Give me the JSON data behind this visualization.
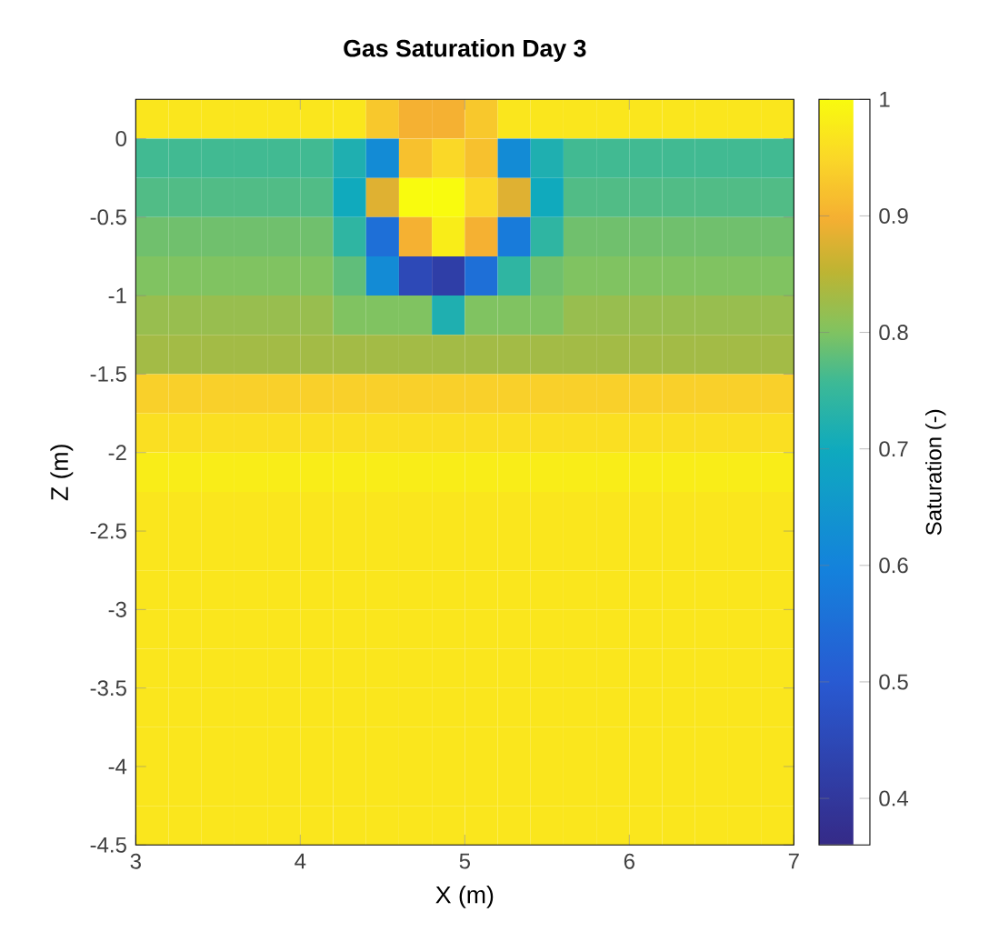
{
  "chart_data": {
    "type": "heatmap",
    "title": "Gas Saturation Day 3",
    "xlabel": "X (m)",
    "ylabel": "Z (m)",
    "clabel": "Saturation (-)",
    "xlim": [
      3,
      7
    ],
    "ylim": [
      -4.5,
      0.25
    ],
    "xticks": [
      3,
      4,
      5,
      6,
      7
    ],
    "yticks": [
      0,
      -0.5,
      -1,
      -1.5,
      -2,
      -2.5,
      -3,
      -3.5,
      -4,
      -4.5
    ],
    "clim": [
      0.36,
      1
    ],
    "cticks": [
      0.4,
      0.5,
      0.6,
      0.7,
      0.8,
      0.9,
      1
    ],
    "x": [
      3.1,
      3.3,
      3.5,
      3.7,
      3.9,
      4.1,
      4.3,
      4.5,
      4.7,
      4.9,
      5.1,
      5.3,
      5.5,
      5.7,
      5.9,
      6.1,
      6.3,
      6.5,
      6.7,
      6.9
    ],
    "y": [
      0.125,
      -0.125,
      -0.375,
      -0.625,
      -0.875,
      -1.125,
      -1.375,
      -1.625,
      -1.875,
      -2.125,
      -2.375,
      -2.625,
      -2.875,
      -3.125,
      -3.375,
      -3.625,
      -3.875,
      -4.125,
      -4.375
    ],
    "cells": [
      [
        0.97,
        0.97,
        0.97,
        0.97,
        0.97,
        0.97,
        0.97,
        0.93,
        0.9,
        0.9,
        0.93,
        0.97,
        0.97,
        0.97,
        0.97,
        0.97,
        0.97,
        0.97,
        0.97,
        0.97
      ],
      [
        0.76,
        0.76,
        0.76,
        0.76,
        0.76,
        0.76,
        0.72,
        0.62,
        0.92,
        0.95,
        0.92,
        0.62,
        0.72,
        0.76,
        0.76,
        0.76,
        0.76,
        0.76,
        0.76,
        0.76
      ],
      [
        0.77,
        0.77,
        0.77,
        0.77,
        0.77,
        0.77,
        0.7,
        0.88,
        1,
        1,
        0.95,
        0.88,
        0.7,
        0.77,
        0.77,
        0.77,
        0.77,
        0.77,
        0.77,
        0.77
      ],
      [
        0.79,
        0.79,
        0.79,
        0.79,
        0.79,
        0.79,
        0.74,
        0.55,
        0.9,
        0.98,
        0.9,
        0.58,
        0.74,
        0.79,
        0.79,
        0.79,
        0.79,
        0.79,
        0.79,
        0.79
      ],
      [
        0.8,
        0.8,
        0.8,
        0.8,
        0.8,
        0.8,
        0.78,
        0.62,
        0.45,
        0.42,
        0.55,
        0.74,
        0.79,
        0.8,
        0.8,
        0.8,
        0.8,
        0.8,
        0.8,
        0.8
      ],
      [
        0.82,
        0.82,
        0.82,
        0.82,
        0.82,
        0.82,
        0.8,
        0.8,
        0.8,
        0.72,
        0.8,
        0.8,
        0.8,
        0.82,
        0.82,
        0.82,
        0.82,
        0.82,
        0.82,
        0.82
      ],
      [
        0.83,
        0.83,
        0.83,
        0.83,
        0.83,
        0.83,
        0.83,
        0.83,
        0.83,
        0.83,
        0.83,
        0.83,
        0.83,
        0.83,
        0.83,
        0.83,
        0.83,
        0.83,
        0.83,
        0.83
      ],
      [
        0.94,
        0.94,
        0.94,
        0.94,
        0.94,
        0.94,
        0.94,
        0.94,
        0.94,
        0.94,
        0.94,
        0.94,
        0.94,
        0.94,
        0.94,
        0.94,
        0.94,
        0.94,
        0.94,
        0.94
      ],
      [
        0.96,
        0.96,
        0.96,
        0.96,
        0.96,
        0.96,
        0.96,
        0.96,
        0.96,
        0.96,
        0.96,
        0.96,
        0.96,
        0.96,
        0.96,
        0.96,
        0.96,
        0.96,
        0.96,
        0.96
      ],
      [
        0.98,
        0.98,
        0.98,
        0.98,
        0.98,
        0.98,
        0.98,
        0.98,
        0.98,
        0.98,
        0.98,
        0.98,
        0.98,
        0.98,
        0.98,
        0.98,
        0.98,
        0.98,
        0.98,
        0.98
      ],
      [
        0.97,
        0.97,
        0.97,
        0.97,
        0.97,
        0.97,
        0.97,
        0.97,
        0.97,
        0.97,
        0.97,
        0.97,
        0.97,
        0.97,
        0.97,
        0.97,
        0.97,
        0.97,
        0.97,
        0.97
      ],
      [
        0.97,
        0.97,
        0.97,
        0.97,
        0.97,
        0.97,
        0.97,
        0.97,
        0.97,
        0.97,
        0.97,
        0.97,
        0.97,
        0.97,
        0.97,
        0.97,
        0.97,
        0.97,
        0.97,
        0.97
      ],
      [
        0.97,
        0.97,
        0.97,
        0.97,
        0.97,
        0.97,
        0.97,
        0.97,
        0.97,
        0.97,
        0.97,
        0.97,
        0.97,
        0.97,
        0.97,
        0.97,
        0.97,
        0.97,
        0.97,
        0.97
      ],
      [
        0.97,
        0.97,
        0.97,
        0.97,
        0.97,
        0.97,
        0.97,
        0.97,
        0.97,
        0.97,
        0.97,
        0.97,
        0.97,
        0.97,
        0.97,
        0.97,
        0.97,
        0.97,
        0.97,
        0.97
      ],
      [
        0.97,
        0.97,
        0.97,
        0.97,
        0.97,
        0.97,
        0.97,
        0.97,
        0.97,
        0.97,
        0.97,
        0.97,
        0.97,
        0.97,
        0.97,
        0.97,
        0.97,
        0.97,
        0.97,
        0.97
      ],
      [
        0.97,
        0.97,
        0.97,
        0.97,
        0.97,
        0.97,
        0.97,
        0.97,
        0.97,
        0.97,
        0.97,
        0.97,
        0.97,
        0.97,
        0.97,
        0.97,
        0.97,
        0.97,
        0.97,
        0.97
      ],
      [
        0.97,
        0.97,
        0.97,
        0.97,
        0.97,
        0.97,
        0.97,
        0.97,
        0.97,
        0.97,
        0.97,
        0.97,
        0.97,
        0.97,
        0.97,
        0.97,
        0.97,
        0.97,
        0.97,
        0.97
      ],
      [
        0.97,
        0.97,
        0.97,
        0.97,
        0.97,
        0.97,
        0.97,
        0.97,
        0.97,
        0.97,
        0.97,
        0.97,
        0.97,
        0.97,
        0.97,
        0.97,
        0.97,
        0.97,
        0.97,
        0.97
      ],
      [
        0.97,
        0.97,
        0.97,
        0.97,
        0.97,
        0.97,
        0.97,
        0.97,
        0.97,
        0.97,
        0.97,
        0.97,
        0.97,
        0.97,
        0.97,
        0.97,
        0.97,
        0.97,
        0.97,
        0.97
      ]
    ]
  }
}
